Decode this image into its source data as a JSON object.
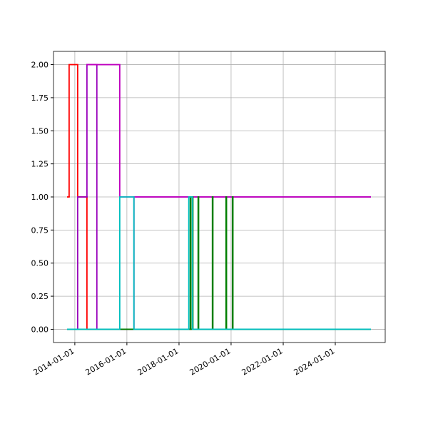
{
  "chart_data": {
    "type": "step",
    "xlim": [
      "2013-03-08",
      "2025-12-01"
    ],
    "xticks": [
      "2014-01-01",
      "2016-01-01",
      "2018-01-01",
      "2020-01-01",
      "2022-01-01",
      "2024-01-01"
    ],
    "ylim": [
      -0.1,
      2.1
    ],
    "yticks": [
      {
        "value": 0,
        "label": "0.00"
      },
      {
        "value": 0.25,
        "label": "0.25"
      },
      {
        "value": 0.5,
        "label": "0.50"
      },
      {
        "value": 0.75,
        "label": "0.75"
      },
      {
        "value": 1,
        "label": "1.00"
      },
      {
        "value": 1.25,
        "label": "1.25"
      },
      {
        "value": 1.5,
        "label": "1.50"
      },
      {
        "value": 1.75,
        "label": "1.75"
      },
      {
        "value": 2,
        "label": "2.00"
      }
    ],
    "grid": true,
    "series": [
      {
        "color": "#ff0000",
        "x": [
          "2013-09-23",
          "2013-10-13",
          "2014-02-10",
          "2014-06-20",
          "2025-05-05"
        ],
        "values": [
          1,
          2,
          1,
          0,
          0
        ]
      },
      {
        "color": "#9900bb",
        "x": [
          "2013-09-23",
          "2014-02-10",
          "2014-06-20",
          "2014-11-06",
          "2016-04-09",
          "2025-05-05"
        ],
        "values": [
          0,
          1,
          2,
          0,
          1,
          1
        ]
      },
      {
        "color": "#bf00bf",
        "x": [
          "2014-06-20",
          "2015-09-23",
          "2025-05-05"
        ],
        "values": [
          2,
          1,
          1
        ]
      },
      {
        "color": "#007f00",
        "x": [
          "2013-09-23",
          "2018-06-08",
          "2018-06-15",
          "2018-07-08",
          "2018-07-15",
          "2018-09-26",
          "2018-10-03",
          "2019-04-14",
          "2019-04-21",
          "2019-10-22",
          "2019-10-29",
          "2020-01-20",
          "2020-01-27",
          "2025-05-05"
        ],
        "values": [
          0,
          1,
          0,
          1,
          0,
          1,
          0,
          1,
          0,
          1,
          0,
          1,
          0,
          0
        ]
      },
      {
        "color": "#00bfbf",
        "x": [
          "2013-09-23",
          "2015-09-23",
          "2016-04-09",
          "2018-05-18",
          "2018-07-08",
          "2025-05-05"
        ],
        "values": [
          0,
          1,
          0,
          1,
          0,
          0
        ]
      }
    ]
  }
}
